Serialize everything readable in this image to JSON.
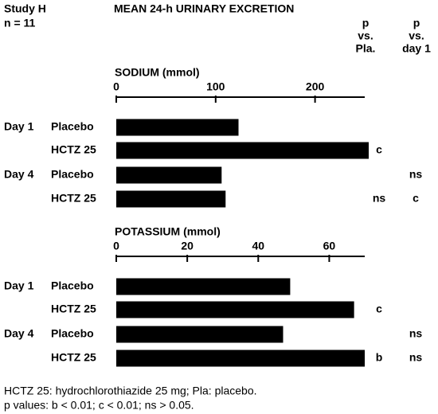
{
  "header": {
    "study": "Study H",
    "n": "n = 11",
    "title": "MEAN 24-h URINARY EXCRETION"
  },
  "columns": [
    [
      "p",
      "vs.",
      "Pla."
    ],
    [
      "p",
      "vs.",
      "day 1"
    ]
  ],
  "chart_data": [
    {
      "type": "bar",
      "orientation": "horizontal",
      "title": "SODIUM (mmol)",
      "groups": [
        "Day 1",
        "Day 4"
      ],
      "categories": [
        "Placebo",
        "HCTZ 25",
        "Placebo",
        "HCTZ 25"
      ],
      "values": [
        123,
        254,
        106,
        110
      ],
      "color": "#000000",
      "xlim": [
        0,
        250
      ],
      "xticks": [
        0,
        100,
        200
      ],
      "p_vs_pla": [
        null,
        "c",
        null,
        "ns"
      ],
      "p_vs_day1": [
        null,
        null,
        "ns",
        "c"
      ]
    },
    {
      "type": "bar",
      "orientation": "horizontal",
      "title": "POTASSIUM (mmol)",
      "groups": [
        "Day 1",
        "Day 4"
      ],
      "categories": [
        "Placebo",
        "HCTZ 25",
        "Placebo",
        "HCTZ 25"
      ],
      "values": [
        49,
        67,
        47,
        70
      ],
      "color": "#000000",
      "xlim": [
        0,
        70
      ],
      "xticks": [
        0,
        20,
        40,
        60
      ],
      "p_vs_pla": [
        null,
        "c",
        null,
        "b"
      ],
      "p_vs_day1": [
        null,
        null,
        "ns",
        "ns"
      ]
    }
  ],
  "footnotes": [
    "HCTZ 25: hydrochlorothiazide 25 mg; Pla: placebo.",
    "p values: b < 0.01; c < 0.01; ns > 0.05."
  ]
}
